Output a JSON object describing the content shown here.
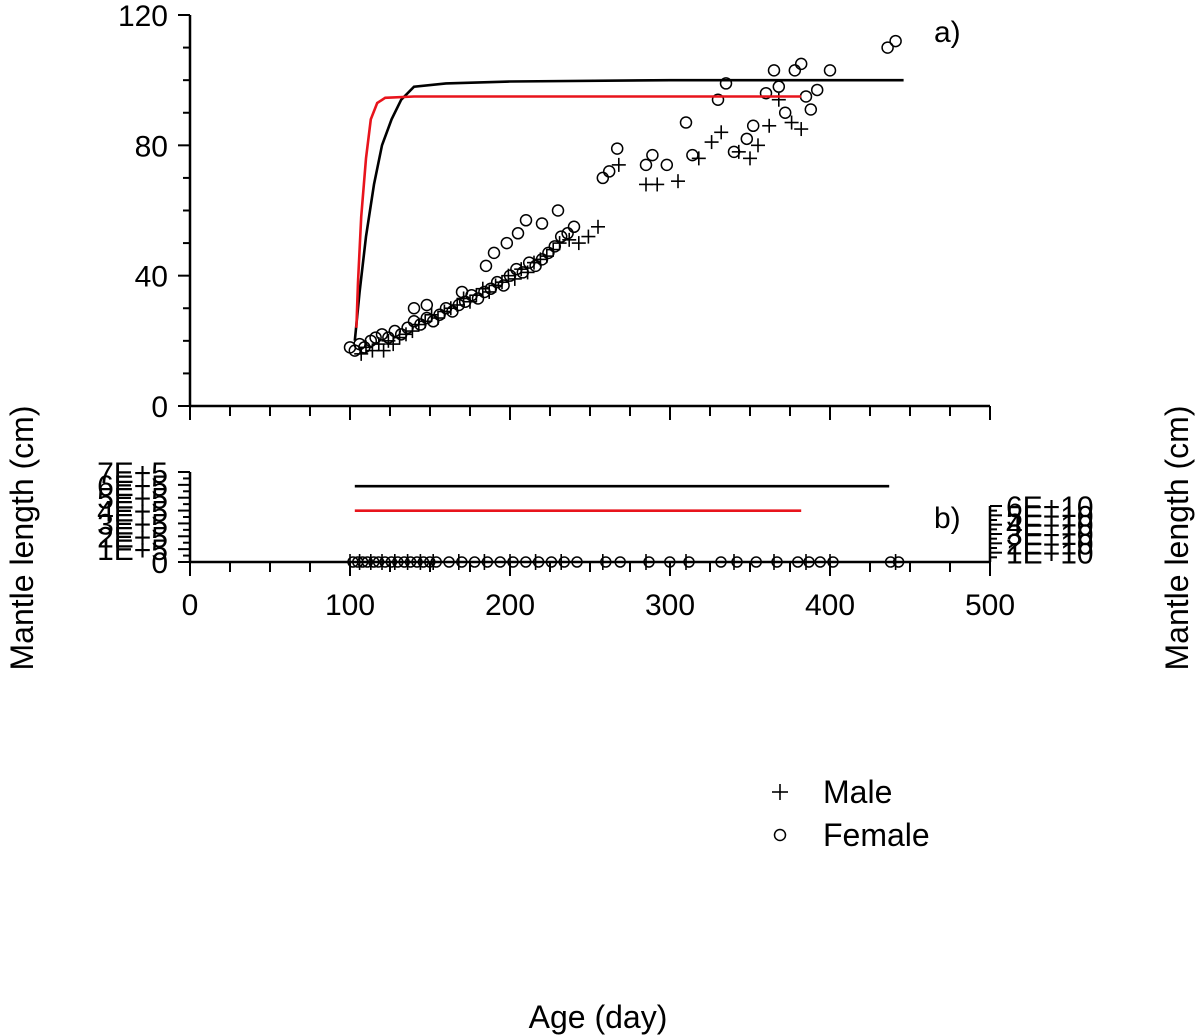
{
  "chart_data": [
    {
      "panel": "a)",
      "type": "scatter",
      "ylabel": "Mantle length (cm)",
      "xlim": [
        0,
        500
      ],
      "ylim": [
        0,
        120
      ],
      "yticks": [
        "0",
        "40",
        "80",
        "120"
      ],
      "grid": false,
      "series": [
        {
          "name": "Male",
          "marker": "plus",
          "points": [
            [
              107,
              16
            ],
            [
              110,
              18
            ],
            [
              114,
              17
            ],
            [
              118,
              19
            ],
            [
              121,
              17
            ],
            [
              124,
              20
            ],
            [
              127,
              19
            ],
            [
              131,
              21
            ],
            [
              135,
              22
            ],
            [
              139,
              23
            ],
            [
              143,
              25
            ],
            [
              147,
              26
            ],
            [
              151,
              28
            ],
            [
              155,
              27
            ],
            [
              159,
              29
            ],
            [
              163,
              30
            ],
            [
              167,
              31
            ],
            [
              171,
              33
            ],
            [
              175,
              32
            ],
            [
              179,
              34
            ],
            [
              183,
              36
            ],
            [
              187,
              35
            ],
            [
              191,
              37
            ],
            [
              195,
              38
            ],
            [
              199,
              40
            ],
            [
              203,
              39
            ],
            [
              207,
              42
            ],
            [
              211,
              41
            ],
            [
              215,
              44
            ],
            [
              219,
              45
            ],
            [
              223,
              46
            ],
            [
              227,
              48
            ],
            [
              231,
              50
            ],
            [
              237,
              51
            ],
            [
              243,
              50
            ],
            [
              249,
              52
            ],
            [
              255,
              55
            ],
            [
              268,
              74
            ],
            [
              285,
              68
            ],
            [
              292,
              68
            ],
            [
              305,
              69
            ],
            [
              318,
              76
            ],
            [
              326,
              81
            ],
            [
              332,
              84
            ],
            [
              343,
              78
            ],
            [
              350,
              76
            ],
            [
              355,
              80
            ],
            [
              362,
              86
            ],
            [
              368,
              94
            ],
            [
              376,
              87
            ],
            [
              382,
              85
            ]
          ]
        },
        {
          "name": "Female",
          "marker": "circle",
          "points": [
            [
              100,
              18
            ],
            [
              103,
              17
            ],
            [
              106,
              19
            ],
            [
              109,
              18
            ],
            [
              113,
              20
            ],
            [
              116,
              21
            ],
            [
              120,
              22
            ],
            [
              124,
              21
            ],
            [
              128,
              23
            ],
            [
              132,
              22
            ],
            [
              136,
              24
            ],
            [
              140,
              26
            ],
            [
              144,
              25
            ],
            [
              148,
              27
            ],
            [
              152,
              26
            ],
            [
              156,
              28
            ],
            [
              160,
              30
            ],
            [
              164,
              29
            ],
            [
              168,
              31
            ],
            [
              172,
              32
            ],
            [
              176,
              34
            ],
            [
              180,
              33
            ],
            [
              184,
              35
            ],
            [
              188,
              36
            ],
            [
              192,
              38
            ],
            [
              196,
              37
            ],
            [
              200,
              40
            ],
            [
              204,
              42
            ],
            [
              208,
              41
            ],
            [
              212,
              44
            ],
            [
              216,
              43
            ],
            [
              220,
              45
            ],
            [
              224,
              47
            ],
            [
              228,
              49
            ],
            [
              232,
              52
            ],
            [
              236,
              53
            ],
            [
              240,
              55
            ],
            [
              140,
              30
            ],
            [
              148,
              31
            ],
            [
              170,
              35
            ],
            [
              185,
              43
            ],
            [
              190,
              47
            ],
            [
              198,
              50
            ],
            [
              205,
              53
            ],
            [
              210,
              57
            ],
            [
              220,
              56
            ],
            [
              230,
              60
            ],
            [
              258,
              70
            ],
            [
              262,
              72
            ],
            [
              267,
              79
            ],
            [
              285,
              74
            ],
            [
              289,
              77
            ],
            [
              298,
              74
            ],
            [
              310,
              87
            ],
            [
              314,
              77
            ],
            [
              330,
              94
            ],
            [
              335,
              99
            ],
            [
              340,
              78
            ],
            [
              348,
              82
            ],
            [
              352,
              86
            ],
            [
              360,
              96
            ],
            [
              365,
              103
            ],
            [
              368,
              98
            ],
            [
              372,
              90
            ],
            [
              378,
              103
            ],
            [
              382,
              105
            ],
            [
              385,
              95
            ],
            [
              388,
              91
            ],
            [
              392,
              97
            ],
            [
              400,
              103
            ],
            [
              436,
              110
            ],
            [
              441,
              112
            ]
          ]
        }
      ],
      "curves": [
        {
          "name": "black fit",
          "color": "#000000",
          "points": [
            [
              103,
              20
            ],
            [
              106,
              35
            ],
            [
              110,
              52
            ],
            [
              115,
              68
            ],
            [
              120,
              80
            ],
            [
              126,
              88
            ],
            [
              132,
              94
            ],
            [
              140,
              98
            ],
            [
              160,
              99
            ],
            [
              200,
              99.6
            ],
            [
              300,
              100
            ],
            [
              446,
              100
            ]
          ]
        },
        {
          "name": "red fit",
          "color": "#e8141c",
          "points": [
            [
              104,
              24
            ],
            [
              105,
              38
            ],
            [
              107,
              58
            ],
            [
              110,
              76
            ],
            [
              113,
              88
            ],
            [
              117,
              93
            ],
            [
              122,
              94.6
            ],
            [
              140,
              95
            ],
            [
              300,
              95
            ],
            [
              382,
              95
            ]
          ]
        }
      ]
    },
    {
      "panel": "b)",
      "type": "scatter",
      "xlabel": "Age (day)",
      "ylabel_left": "Mantle length (cm)",
      "ylabel_right": "Mantle length (cm)",
      "xlim": [
        0,
        500
      ],
      "xticks": [
        "0",
        "100",
        "200",
        "300",
        "400",
        "500"
      ],
      "ylim_left": [
        0,
        700000
      ],
      "yticks_left": [
        "0",
        "1E+5",
        "2E+5",
        "3E+5",
        "4E+5",
        "5E+5",
        "6E+5",
        "7E+5"
      ],
      "ylim_right": [
        0,
        60000000000
      ],
      "yticks_right": [
        "1E+10",
        "2E+10",
        "3E+10",
        "4E+10",
        "5E+10",
        "6E+10"
      ],
      "grid": false,
      "lines": [
        {
          "name": "red fit",
          "color": "#e8141c",
          "axis": "right",
          "y": 55000000000,
          "x": [
            103,
            382
          ]
        },
        {
          "name": "black fit",
          "color": "#000000",
          "axis": "left",
          "y": 590000,
          "x": [
            103,
            437
          ]
        }
      ],
      "points_x": [
        100,
        103,
        106,
        109,
        113,
        116,
        120,
        124,
        128,
        132,
        136,
        140,
        144,
        148,
        152,
        160,
        168,
        176,
        184,
        192,
        200,
        208,
        216,
        224,
        232,
        240,
        258,
        267,
        285,
        298,
        310,
        330,
        340,
        352,
        365,
        378,
        385,
        392,
        400,
        436,
        441
      ],
      "legend": {
        "position": "bottom-right",
        "entries": [
          {
            "marker": "plus",
            "label": "Male"
          },
          {
            "marker": "circle",
            "label": "Female"
          }
        ]
      }
    }
  ]
}
